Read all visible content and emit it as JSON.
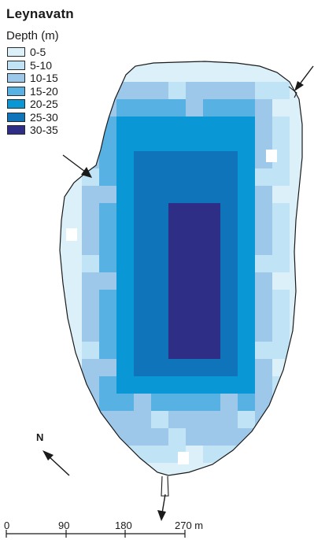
{
  "title": "Leynavatn",
  "legend": {
    "title": "Depth (m)",
    "classes": [
      {
        "label": "0-5",
        "color": "#dcf0fa"
      },
      {
        "label": "5-10",
        "color": "#c0e4f5"
      },
      {
        "label": "10-15",
        "color": "#9ec8ea"
      },
      {
        "label": "15-20",
        "color": "#57b1e3"
      },
      {
        "label": "20-25",
        "color": "#0a97d6"
      },
      {
        "label": "25-30",
        "color": "#0f74b9"
      },
      {
        "label": "30-35",
        "color": "#2e2e87"
      }
    ]
  },
  "north_label": "N",
  "scale": {
    "labels": [
      "0",
      "90",
      "180",
      "270 m"
    ]
  }
}
